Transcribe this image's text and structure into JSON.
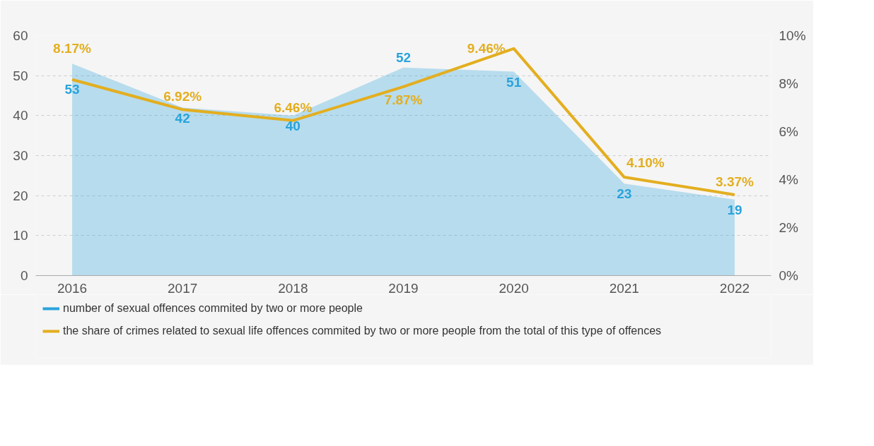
{
  "chart_data": {
    "type": "area",
    "categories": [
      "2016",
      "2017",
      "2018",
      "2019",
      "2020",
      "2021",
      "2022"
    ],
    "series": [
      {
        "name": "number of sexual offences commited by two or more people",
        "color": "#29a3dc",
        "values": [
          53,
          42,
          40,
          52,
          51,
          23,
          19
        ]
      },
      {
        "name": "the share of crimes related to sexual life offences commited by two or more people from the total of this type of offences",
        "type": "line",
        "axis": "y2",
        "color": "#e3ae1f",
        "values": [
          8.17,
          6.92,
          6.46,
          7.87,
          9.46,
          4.1,
          3.37
        ],
        "value_labels": [
          "8.17%",
          "6.92%",
          "6.46%",
          "7.87%",
          "9.46%",
          "4.10%",
          "3.37%"
        ]
      }
    ],
    "data_labels": true,
    "ylim": [
      0,
      60
    ],
    "yticks": [
      0,
      10,
      20,
      30,
      40,
      50,
      60
    ],
    "y2lim": [
      0,
      10
    ],
    "y2ticks": [
      {
        "value": 0,
        "label": "0%"
      },
      {
        "value": 2,
        "label": "2%"
      },
      {
        "value": 4,
        "label": "4%"
      },
      {
        "value": 6,
        "label": "6%"
      },
      {
        "value": 8,
        "label": "8%"
      },
      {
        "value": 10,
        "label": "10%"
      }
    ],
    "grid": "y",
    "legend": "bottom"
  }
}
